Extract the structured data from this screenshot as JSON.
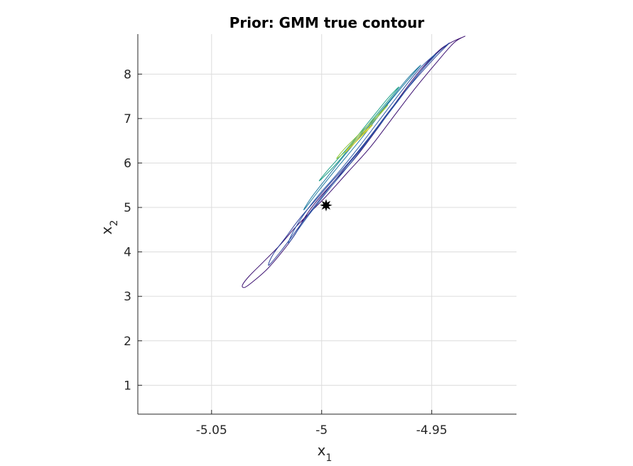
{
  "chart_data": {
    "type": "contour",
    "title": "Prior: GMM true contour",
    "xlabel_main": "x",
    "xlabel_sub": "1",
    "ylabel_main": "x",
    "ylabel_sub": "2",
    "xlim": [
      -5.0835,
      -4.9115
    ],
    "ylim": [
      0.35,
      8.9
    ],
    "xticks": [
      -5.05,
      -5.0,
      -4.95
    ],
    "xtick_labels": [
      "-5.05",
      "-5",
      "-4.95"
    ],
    "yticks": [
      1,
      2,
      3,
      4,
      5,
      6,
      7,
      8
    ],
    "ytick_labels": [
      "1",
      "2",
      "3",
      "4",
      "5",
      "6",
      "7",
      "8"
    ],
    "grid": true,
    "colormap": [
      "#3b0f70",
      "#2c3f99",
      "#1f6f99",
      "#1fa088",
      "#3ab36a",
      "#8fc43a",
      "#c9c92a",
      "#e8d31a"
    ],
    "marker": {
      "x": -4.998,
      "y": 5.05,
      "color": "#000000",
      "symbol": "star"
    },
    "contour_levels": [
      {
        "level": 1,
        "color": "#3b0f70",
        "points": [
          [
            -5.035,
            3.2
          ],
          [
            -5.032,
            3.3
          ],
          [
            -5.025,
            3.6
          ],
          [
            -5.018,
            4.0
          ],
          [
            -5.012,
            4.4
          ],
          [
            -5.008,
            4.75
          ],
          [
            -5.003,
            5.1
          ],
          [
            -4.995,
            5.55
          ],
          [
            -4.985,
            6.1
          ],
          [
            -4.975,
            6.75
          ],
          [
            -4.965,
            7.45
          ],
          [
            -4.955,
            8.1
          ],
          [
            -4.945,
            8.6
          ],
          [
            -4.935,
            8.85
          ],
          [
            -4.94,
            8.7
          ],
          [
            -4.948,
            8.25
          ],
          [
            -4.958,
            7.65
          ],
          [
            -4.968,
            7.0
          ],
          [
            -4.978,
            6.35
          ],
          [
            -4.988,
            5.8
          ],
          [
            -4.998,
            5.25
          ],
          [
            -5.005,
            4.9
          ],
          [
            -5.012,
            4.55
          ],
          [
            -5.019,
            4.15
          ],
          [
            -5.027,
            3.75
          ],
          [
            -5.033,
            3.45
          ],
          [
            -5.036,
            3.25
          ]
        ]
      },
      {
        "level": 2,
        "color": "#2c3f99",
        "points": [
          [
            -5.024,
            3.7
          ],
          [
            -5.018,
            4.05
          ],
          [
            -5.012,
            4.45
          ],
          [
            -5.006,
            4.85
          ],
          [
            -4.999,
            5.3
          ],
          [
            -4.99,
            5.85
          ],
          [
            -4.98,
            6.45
          ],
          [
            -4.97,
            7.1
          ],
          [
            -4.96,
            7.75
          ],
          [
            -4.95,
            8.35
          ],
          [
            -4.942,
            8.7
          ],
          [
            -4.948,
            8.4
          ],
          [
            -4.958,
            7.85
          ],
          [
            -4.968,
            7.25
          ],
          [
            -4.978,
            6.6
          ],
          [
            -4.987,
            6.05
          ],
          [
            -4.996,
            5.55
          ],
          [
            -5.003,
            5.15
          ],
          [
            -5.01,
            4.75
          ],
          [
            -5.016,
            4.35
          ],
          [
            -5.022,
            3.95
          ]
        ]
      },
      {
        "level": 3,
        "color": "#2c5aa8",
        "points": [
          [
            -5.015,
            4.2
          ],
          [
            -5.01,
            4.55
          ],
          [
            -5.004,
            4.95
          ],
          [
            -4.996,
            5.45
          ],
          [
            -4.986,
            6.05
          ],
          [
            -4.976,
            6.7
          ],
          [
            -4.966,
            7.35
          ],
          [
            -4.956,
            8.0
          ],
          [
            -4.948,
            8.45
          ],
          [
            -4.955,
            8.15
          ],
          [
            -4.964,
            7.6
          ],
          [
            -4.974,
            6.95
          ],
          [
            -4.984,
            6.3
          ],
          [
            -4.993,
            5.75
          ],
          [
            -5.001,
            5.3
          ],
          [
            -5.008,
            4.85
          ],
          [
            -5.013,
            4.45
          ]
        ]
      },
      {
        "level": 4,
        "color": "#1f7aa0",
        "points": [
          [
            -5.008,
            4.95
          ],
          [
            -5.001,
            5.4
          ],
          [
            -4.992,
            5.95
          ],
          [
            -4.982,
            6.55
          ],
          [
            -4.972,
            7.2
          ],
          [
            -4.962,
            7.8
          ],
          [
            -4.955,
            8.2
          ],
          [
            -4.961,
            7.9
          ],
          [
            -4.97,
            7.35
          ],
          [
            -4.98,
            6.75
          ],
          [
            -4.99,
            6.15
          ],
          [
            -4.998,
            5.65
          ],
          [
            -5.005,
            5.2
          ]
        ]
      },
      {
        "level": 5,
        "color": "#1fa088",
        "points": [
          [
            -5.001,
            5.6
          ],
          [
            -4.993,
            6.0
          ],
          [
            -4.984,
            6.55
          ],
          [
            -4.974,
            7.15
          ],
          [
            -4.965,
            7.7
          ],
          [
            -4.97,
            7.45
          ],
          [
            -4.979,
            6.9
          ],
          [
            -4.988,
            6.35
          ],
          [
            -4.997,
            5.85
          ]
        ]
      },
      {
        "level": 6,
        "color": "#8fc43a",
        "points": [
          [
            -4.993,
            6.1
          ],
          [
            -4.985,
            6.45
          ],
          [
            -4.977,
            6.9
          ],
          [
            -4.97,
            7.3
          ],
          [
            -4.975,
            7.05
          ],
          [
            -4.983,
            6.65
          ],
          [
            -4.99,
            6.3
          ]
        ]
      },
      {
        "level": 7,
        "color": "#c9c92a",
        "points": [
          [
            -4.989,
            6.25
          ],
          [
            -4.983,
            6.55
          ],
          [
            -4.977,
            6.85
          ],
          [
            -4.981,
            6.7
          ],
          [
            -4.986,
            6.45
          ]
        ]
      },
      {
        "level": 8,
        "color": "#e8d31a",
        "points": [
          [
            -4.987,
            6.35
          ],
          [
            -4.982,
            6.6
          ],
          [
            -4.979,
            6.75
          ],
          [
            -4.983,
            6.55
          ]
        ]
      }
    ]
  }
}
